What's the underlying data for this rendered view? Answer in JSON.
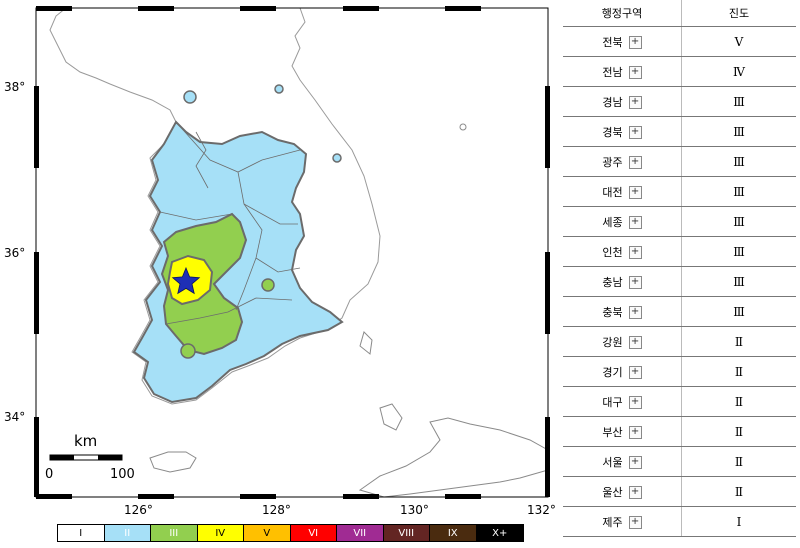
{
  "map": {
    "lat_labels": [
      "38°",
      "36°",
      "34°"
    ],
    "lon_labels": [
      "126°",
      "128°",
      "130°",
      "132°"
    ],
    "scale": {
      "unit": "km",
      "start": "0",
      "end": "100"
    },
    "epicenter": "star-icon"
  },
  "legend": [
    {
      "label": "I",
      "color": "#ffffff",
      "text_color": "#000000"
    },
    {
      "label": "II",
      "color": "#a6e0f7",
      "text_color": "#ffffff"
    },
    {
      "label": "III",
      "color": "#92cf4f",
      "text_color": "#ffffff"
    },
    {
      "label": "IV",
      "color": "#ffff00",
      "text_color": "#000000"
    },
    {
      "label": "V",
      "color": "#ffc000",
      "text_color": "#000000"
    },
    {
      "label": "VI",
      "color": "#ff0000",
      "text_color": "#ffffff"
    },
    {
      "label": "VII",
      "color": "#a02b93",
      "text_color": "#ffffff"
    },
    {
      "label": "VIII",
      "color": "#632523",
      "text_color": "#ffffff"
    },
    {
      "label": "IX",
      "color": "#4a2b0f",
      "text_color": "#ffffff"
    },
    {
      "label": "X+",
      "color": "#000000",
      "text_color": "#ffffff"
    }
  ],
  "table": {
    "headers": {
      "region": "행정구역",
      "intensity": "진도"
    },
    "expand_symbol": "+",
    "rows": [
      {
        "region": "전북",
        "intensity": "Ⅴ"
      },
      {
        "region": "전남",
        "intensity": "Ⅳ"
      },
      {
        "region": "경남",
        "intensity": "Ⅲ"
      },
      {
        "region": "경북",
        "intensity": "Ⅲ"
      },
      {
        "region": "광주",
        "intensity": "Ⅲ"
      },
      {
        "region": "대전",
        "intensity": "Ⅲ"
      },
      {
        "region": "세종",
        "intensity": "Ⅲ"
      },
      {
        "region": "인천",
        "intensity": "Ⅲ"
      },
      {
        "region": "충남",
        "intensity": "Ⅲ"
      },
      {
        "region": "충북",
        "intensity": "Ⅲ"
      },
      {
        "region": "강원",
        "intensity": "Ⅱ"
      },
      {
        "region": "경기",
        "intensity": "Ⅱ"
      },
      {
        "region": "대구",
        "intensity": "Ⅱ"
      },
      {
        "region": "부산",
        "intensity": "Ⅱ"
      },
      {
        "region": "서울",
        "intensity": "Ⅱ"
      },
      {
        "region": "울산",
        "intensity": "Ⅱ"
      },
      {
        "region": "제주",
        "intensity": "Ⅰ"
      }
    ]
  }
}
